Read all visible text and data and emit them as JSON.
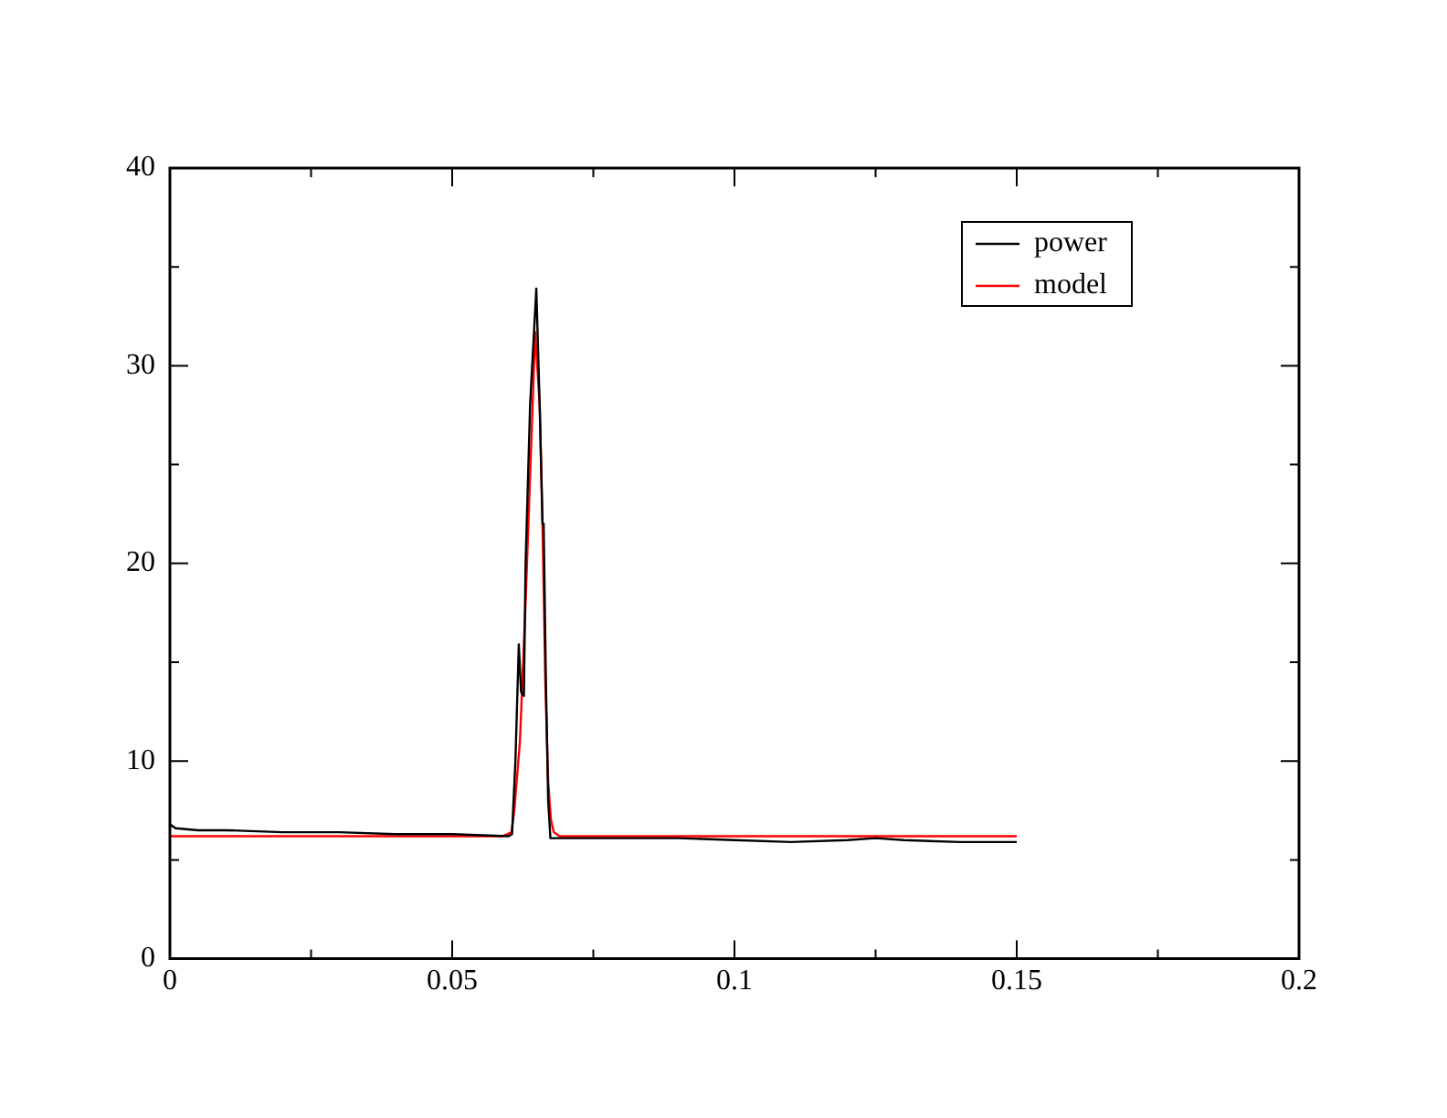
{
  "chart_data": {
    "type": "line",
    "xlim": [
      0,
      0.2
    ],
    "ylim": [
      0,
      40
    ],
    "xticks": [
      0,
      {
        "value": 0.025,
        "label": null
      },
      0.05,
      {
        "value": 0.075,
        "label": null
      },
      0.1,
      {
        "value": 0.125,
        "label": null
      },
      0.15,
      {
        "value": 0.175,
        "label": null
      },
      0.2
    ],
    "yticks": [
      0,
      {
        "value": 5,
        "label": null
      },
      10,
      {
        "value": 15,
        "label": null
      },
      20,
      {
        "value": 25,
        "label": null
      },
      30,
      {
        "value": 35,
        "label": null
      },
      40
    ],
    "grid": false,
    "legend": "top right",
    "marker": "none",
    "line_style": "solid",
    "series": [
      {
        "name": "power",
        "color": "#000000",
        "x": [
          0,
          0.001,
          0.005,
          0.01,
          0.02,
          0.03,
          0.04,
          0.05,
          0.06,
          0.0606,
          0.0612,
          0.0618,
          0.0622,
          0.0627,
          0.063,
          0.0638,
          0.0649,
          0.0655,
          0.066,
          0.0662,
          0.0666,
          0.067,
          0.0674,
          0.08,
          0.09,
          0.1,
          0.11,
          0.12,
          0.125,
          0.13,
          0.14,
          0.15
        ],
        "values": [
          6.8,
          6.6,
          6.5,
          6.5,
          6.4,
          6.4,
          6.3,
          6.3,
          6.2,
          6.3,
          10,
          15.9,
          13.5,
          13.3,
          20,
          28,
          33.9,
          28,
          22,
          22,
          14,
          8,
          6.1,
          6.1,
          6.1,
          6.0,
          5.9,
          6.0,
          6.1,
          6.0,
          5.9,
          5.9
        ]
      },
      {
        "name": "model",
        "color": "#ff0000",
        "x": [
          0,
          0.059,
          0.0605,
          0.061,
          0.062,
          0.063,
          0.064,
          0.0647,
          0.0655,
          0.066,
          0.0665,
          0.067,
          0.0675,
          0.068,
          0.069,
          0.15
        ],
        "values": [
          6.2,
          6.2,
          6.4,
          7.5,
          11,
          18,
          26,
          31.7,
          28,
          22,
          14,
          9,
          7,
          6.4,
          6.2,
          6.2
        ]
      }
    ]
  }
}
